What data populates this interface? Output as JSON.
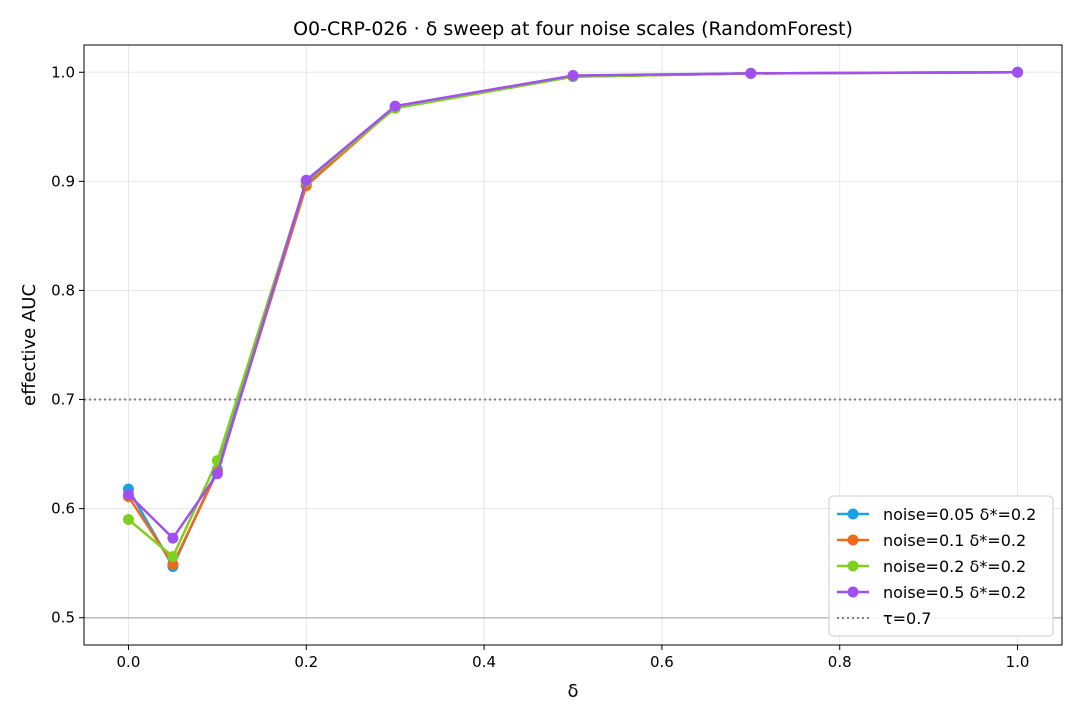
{
  "chart_data": {
    "type": "line",
    "title": "O0-CRP-026 · δ sweep at four noise scales (RandomForest)",
    "xlabel": "δ",
    "ylabel": "effective AUC",
    "xlim": [
      -0.05,
      1.05
    ],
    "ylim": [
      0.475,
      1.025
    ],
    "x": [
      0.0,
      0.05,
      0.1,
      0.2,
      0.3,
      0.5,
      0.7,
      1.0
    ],
    "xticks": [
      "0.0",
      "0.2",
      "0.4",
      "0.6",
      "0.8",
      "1.0"
    ],
    "yticks": [
      "0.5",
      "0.6",
      "0.7",
      "0.8",
      "0.9",
      "1.0"
    ],
    "grid": true,
    "legend_position": "lower-right",
    "series": [
      {
        "name": "noise=0.05  δ*=0.2",
        "color": "#1aa3e0",
        "values": [
          0.618,
          0.547,
          0.636,
          0.897,
          0.968,
          0.996,
          0.999,
          1.0
        ]
      },
      {
        "name": "noise=0.1  δ*=0.2",
        "color": "#f06a1c",
        "values": [
          0.611,
          0.549,
          0.634,
          0.896,
          0.968,
          0.996,
          0.999,
          1.0
        ]
      },
      {
        "name": "noise=0.2  δ*=0.2",
        "color": "#7fcf1f",
        "values": [
          0.59,
          0.556,
          0.644,
          0.9,
          0.967,
          0.996,
          0.999,
          1.0
        ]
      },
      {
        "name": "noise=0.5  δ*=0.2",
        "color": "#a150f0",
        "values": [
          0.613,
          0.573,
          0.632,
          0.901,
          0.969,
          0.997,
          0.999,
          1.0
        ]
      }
    ],
    "reference_lines": [
      {
        "name": "τ=0.7",
        "value": 0.7,
        "style": "dotted",
        "color": "#808080",
        "in_legend": true
      },
      {
        "value": 0.5,
        "style": "solid",
        "color": "#bbbbbb",
        "in_legend": false
      }
    ]
  }
}
